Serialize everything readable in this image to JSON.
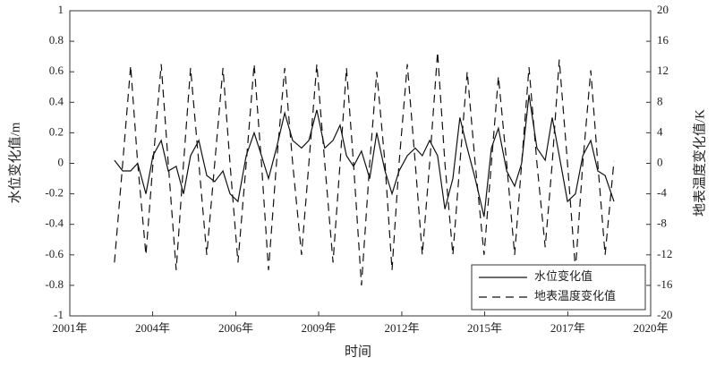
{
  "chart_data": {
    "type": "line",
    "xlabel": "时间",
    "ylabel": "水位变化值/m",
    "y2label": "地表温度变化值/K",
    "xlim": [
      2001,
      2020
    ],
    "xticks": [
      {
        "value": 2001,
        "label": "2001年"
      },
      {
        "value": 2003.71,
        "label": "2004年"
      },
      {
        "value": 2006.43,
        "label": "2006年"
      },
      {
        "value": 2009.14,
        "label": "2009年"
      },
      {
        "value": 2011.86,
        "label": "2012年"
      },
      {
        "value": 2014.57,
        "label": "2015年"
      },
      {
        "value": 2017.29,
        "label": "2017年"
      },
      {
        "value": 2020,
        "label": "2020年"
      }
    ],
    "ylim": [
      -1,
      1
    ],
    "yticks": [
      -1,
      -0.8,
      -0.6,
      -0.4,
      -0.2,
      0,
      0.2,
      0.4,
      0.6,
      0.8,
      1
    ],
    "y2lim": [
      -20,
      20
    ],
    "y2ticks": [
      -20,
      -16,
      -12,
      -8,
      -4,
      0,
      4,
      8,
      12,
      16,
      20
    ],
    "legend": "lower right",
    "x": [
      2002.46,
      2002.73,
      2002.99,
      2003.22,
      2003.49,
      2003.72,
      2003.99,
      2004.22,
      2004.48,
      2004.72,
      2004.95,
      2005.22,
      2005.48,
      2005.74,
      2006.01,
      2006.24,
      2006.5,
      2006.77,
      2007.03,
      2007.27,
      2007.5,
      2007.76,
      2008.03,
      2008.29,
      2008.58,
      2008.82,
      2009.08,
      2009.34,
      2009.61,
      2009.84,
      2010.05,
      2010.28,
      2010.54,
      2010.81,
      2011.04,
      2011.31,
      2011.54,
      2011.77,
      2012.04,
      2012.3,
      2012.53,
      2012.77,
      2013.03,
      2013.27,
      2013.53,
      2013.76,
      2014.0,
      2014.26,
      2014.55,
      2014.79,
      2015.02,
      2015.29,
      2015.55,
      2015.78,
      2016.02,
      2016.28,
      2016.55,
      2016.78,
      2017.01,
      2017.28,
      2017.54,
      2017.78,
      2018.04,
      2018.27,
      2018.51,
      2018.8
    ],
    "series": [
      {
        "name": "水位变化值",
        "color": "#111111",
        "line_style": "solid",
        "axis": "y",
        "values": [
          0.02,
          -0.05,
          -0.05,
          0,
          -0.2,
          0.05,
          0.15,
          -0.05,
          -0.02,
          -0.2,
          0.05,
          0.15,
          -0.08,
          -0.12,
          -0.05,
          -0.2,
          -0.25,
          0.05,
          0.2,
          0.05,
          -0.1,
          0.1,
          0.33,
          0.15,
          0.1,
          0.15,
          0.35,
          0.1,
          0.15,
          0.25,
          0.05,
          -0.02,
          0.08,
          -0.1,
          0.2,
          -0.05,
          -0.2,
          -0.05,
          0.05,
          0.1,
          0.05,
          0.15,
          0.05,
          -0.3,
          -0.1,
          0.3,
          0.1,
          -0.1,
          -0.35,
          0.1,
          0.23,
          -0.05,
          -0.15,
          0,
          0.45,
          0.1,
          0.02,
          0.3,
          0.05,
          -0.25,
          -0.2,
          0.05,
          0.15,
          -0.05,
          -0.08,
          -0.25
        ]
      },
      {
        "name": "地表温度变化值",
        "color": "#111111",
        "line_style": "dashed",
        "axis": "y2",
        "values": [
          -13,
          0,
          12.8,
          0,
          -12,
          0,
          13,
          0,
          -14,
          0,
          12.5,
          0,
          -12,
          0,
          12.5,
          0,
          -13,
          0,
          13,
          0,
          -14,
          0,
          12.5,
          0,
          -12,
          0,
          13,
          0,
          -13,
          0,
          12.5,
          0,
          -16,
          0,
          12,
          0,
          -14,
          0,
          13,
          0,
          -12,
          0,
          14.6,
          0,
          -12,
          0,
          12,
          0,
          -12,
          0,
          11.4,
          0,
          -12,
          0,
          12.6,
          0,
          -11,
          0,
          13.6,
          0,
          -14,
          0,
          12.2,
          0,
          -12,
          0.3
        ]
      }
    ]
  }
}
